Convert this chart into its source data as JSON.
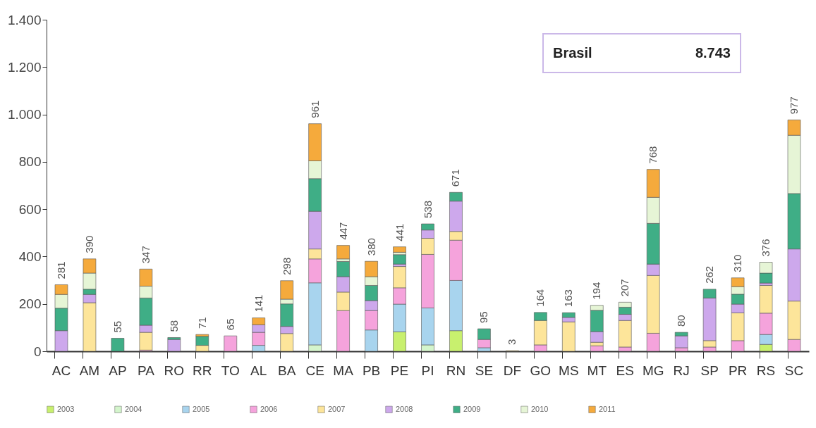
{
  "chart_data": {
    "type": "bar",
    "stacked": true,
    "categories": [
      "AC",
      "AM",
      "AP",
      "PA",
      "RO",
      "RR",
      "TO",
      "AL",
      "BA",
      "CE",
      "MA",
      "PB",
      "PE",
      "PI",
      "RN",
      "SE",
      "DF",
      "GO",
      "MS",
      "MT",
      "ES",
      "MG",
      "RJ",
      "SP",
      "PR",
      "RS",
      "SC"
    ],
    "series": [
      {
        "name": "2003",
        "color": "#c8f06e",
        "values": [
          null,
          null,
          null,
          null,
          null,
          null,
          null,
          null,
          null,
          null,
          null,
          null,
          82,
          null,
          87,
          null,
          null,
          null,
          null,
          null,
          null,
          null,
          null,
          null,
          null,
          29,
          null
        ]
      },
      {
        "name": "2004",
        "color": "#d4f5cc",
        "values": [
          null,
          null,
          null,
          null,
          null,
          null,
          null,
          null,
          null,
          27,
          null,
          null,
          null,
          27,
          null,
          null,
          null,
          null,
          null,
          null,
          null,
          null,
          null,
          null,
          null,
          null,
          null
        ]
      },
      {
        "name": "2005",
        "color": "#a8d4ee",
        "values": [
          null,
          null,
          null,
          null,
          null,
          null,
          null,
          25,
          null,
          262,
          null,
          90,
          117,
          156,
          212,
          15,
          null,
          null,
          null,
          null,
          null,
          null,
          null,
          null,
          null,
          42,
          null
        ]
      },
      {
        "name": "2006",
        "color": "#f5a3dc",
        "values": [
          null,
          null,
          null,
          5,
          null,
          null,
          65,
          55,
          null,
          101,
          172,
          82,
          69,
          226,
          170,
          35,
          null,
          27,
          null,
          23,
          18,
          76,
          15,
          18,
          45,
          90,
          50
        ]
      },
      {
        "name": "2007",
        "color": "#fde59a",
        "values": [
          null,
          205,
          null,
          75,
          null,
          25,
          null,
          null,
          75,
          42,
          78,
          null,
          90,
          68,
          37,
          null,
          3,
          103,
          124,
          15,
          112,
          244,
          null,
          27,
          117,
          117,
          162
        ]
      },
      {
        "name": "2008",
        "color": "#cda8ec",
        "values": [
          87,
          35,
          null,
          30,
          50,
          null,
          null,
          32,
          30,
          159,
          65,
          42,
          10,
          35,
          128,
          null,
          null,
          null,
          19,
          45,
          26,
          48,
          50,
          180,
          37,
          10,
          220
        ]
      },
      {
        "name": "2009",
        "color": "#3fae86",
        "values": [
          95,
          22,
          55,
          115,
          8,
          38,
          null,
          null,
          95,
          138,
          64,
          64,
          40,
          26,
          37,
          45,
          null,
          34,
          20,
          90,
          30,
          172,
          15,
          37,
          42,
          42,
          234
        ]
      },
      {
        "name": "2010",
        "color": "#e6f5d6",
        "values": [
          58,
          68,
          null,
          50,
          null,
          null,
          null,
          null,
          20,
          75,
          11,
          37,
          10,
          null,
          null,
          null,
          null,
          null,
          null,
          21,
          21,
          110,
          null,
          null,
          32,
          46,
          246
        ]
      },
      {
        "name": "2011",
        "color": "#f5aa3c",
        "values": [
          41,
          60,
          null,
          72,
          null,
          8,
          null,
          29,
          78,
          157,
          57,
          65,
          23,
          null,
          null,
          null,
          null,
          null,
          null,
          null,
          null,
          118,
          null,
          null,
          37,
          null,
          65
        ]
      }
    ],
    "totals": [
      "281",
      "390",
      "55",
      "347",
      "58",
      "71",
      "65",
      "141",
      "298",
      "961",
      "447",
      "380",
      "441",
      "538",
      "671",
      "95",
      "3",
      "164",
      "163",
      "194",
      "207",
      "768",
      "80",
      "262",
      "310",
      "376",
      "977"
    ],
    "ylim": [
      0,
      1400
    ],
    "yticks": [
      0,
      {
        "value": 200,
        "label": "200"
      },
      {
        "value": 400,
        "label": "400"
      },
      {
        "value": 600,
        "label": "600"
      },
      {
        "value": 800,
        "label": "800"
      },
      {
        "value": 1000,
        "label": "1.000"
      },
      {
        "value": 1200,
        "label": "1.200"
      },
      {
        "value": 1400,
        "label": "1.400"
      }
    ],
    "grid": false,
    "legend": "bottom",
    "annotations": [
      "Brasil",
      "8.743"
    ]
  }
}
